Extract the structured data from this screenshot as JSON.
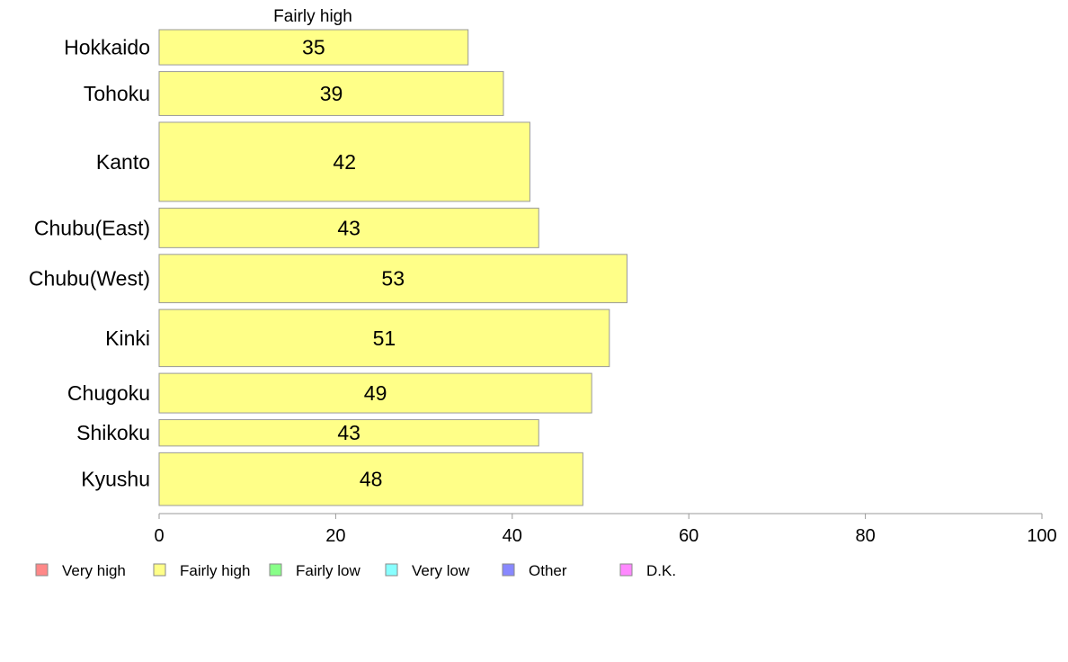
{
  "chart_data": {
    "type": "bar",
    "orientation": "horizontal",
    "series_label": "Fairly high",
    "categories": [
      "Hokkaido",
      "Tohoku",
      "Kanto",
      "Chubu(East)",
      "Chubu(West)",
      "Kinki",
      "Chugoku",
      "Shikoku",
      "Kyushu"
    ],
    "band_weights": [
      0.8,
      1.0,
      1.8,
      0.9,
      1.1,
      1.3,
      0.9,
      0.6,
      1.2
    ],
    "series": [
      {
        "name": "Fairly high",
        "color": "#ffff88",
        "values": [
          35,
          39,
          42,
          43,
          53,
          51,
          49,
          43,
          48
        ]
      }
    ],
    "data_labels": [
      "35",
      "39",
      "42",
      "43",
      "53",
      "51",
      "49",
      "43",
      "48"
    ],
    "xlim": [
      0,
      100
    ],
    "xticks": [
      0,
      20,
      40,
      60,
      80,
      100
    ],
    "grid": false,
    "legend": {
      "position": "bottom",
      "entries": [
        {
          "label": "Very high",
          "color": "#ff8888"
        },
        {
          "label": "Fairly high",
          "color": "#ffff88"
        },
        {
          "label": "Fairly low",
          "color": "#88ff88"
        },
        {
          "label": "Very low",
          "color": "#88ffff"
        },
        {
          "label": "Other",
          "color": "#8888ff"
        },
        {
          "label": "D.K.",
          "color": "#ff88ff"
        }
      ]
    }
  }
}
